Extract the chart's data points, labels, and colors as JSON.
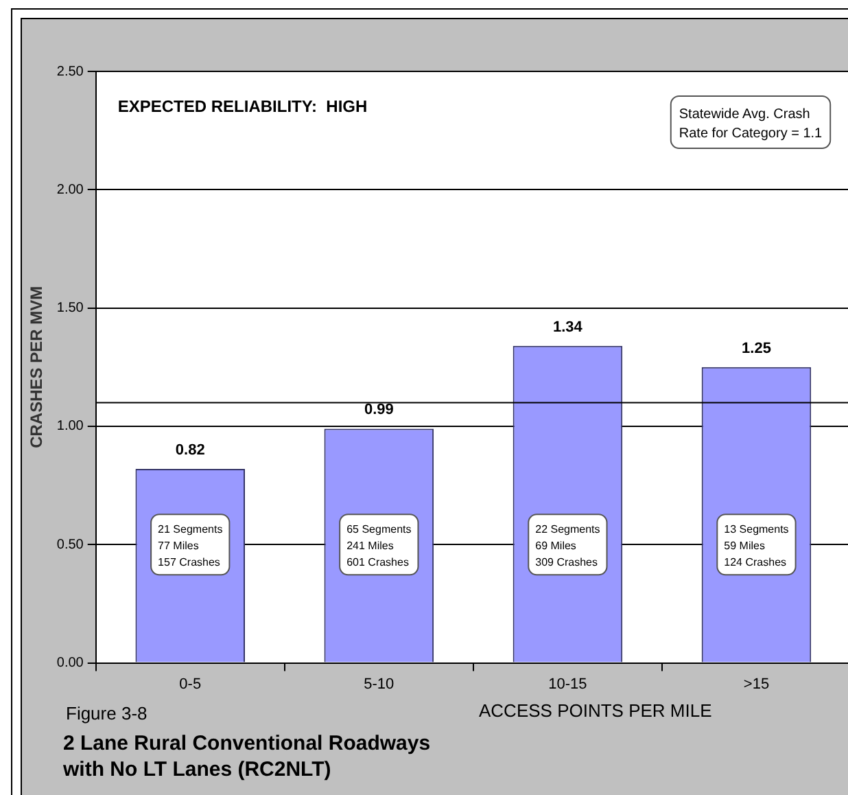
{
  "chart_data": {
    "type": "bar",
    "title": "2 Lane Rural Conventional Roadways\nwith No LT Lanes (RC2NLT)",
    "xlabel": "ACCESS POINTS PER MILE",
    "ylabel": "CRASHES PER MVM",
    "categories": [
      "0-5",
      "5-10",
      "10-15",
      ">15"
    ],
    "values": [
      0.82,
      0.99,
      1.34,
      1.25
    ],
    "color": "#9999ff",
    "ylim": [
      0,
      2.5
    ],
    "yticks": [
      {
        "value": 0,
        "label": "0.00"
      },
      {
        "value": 0.5,
        "label": "0.50"
      },
      {
        "value": 1,
        "label": "1.00"
      },
      {
        "value": 1.5,
        "label": "1.50"
      },
      {
        "value": 2,
        "label": "2.00"
      },
      {
        "value": 2.5,
        "label": "2.50"
      }
    ],
    "grid": "y",
    "legend": false,
    "data_labels": true,
    "ref_lines": [
      {
        "axis": "y",
        "value": 1.1,
        "label": "Statewide Avg. Crash\nRate for Category = 1.1",
        "color": "#000000"
      }
    ],
    "annotations": [
      "EXPECTED RELIABILITY:  HIGH",
      "Figure 3-8",
      "21 Segments\n77 Miles\n157 Crashes",
      "65 Segments\n241 Miles\n601 Crashes",
      "22 Segments\n69 Miles\n309 Crashes",
      "13 Segments\n59 Miles\n124 Crashes"
    ]
  }
}
